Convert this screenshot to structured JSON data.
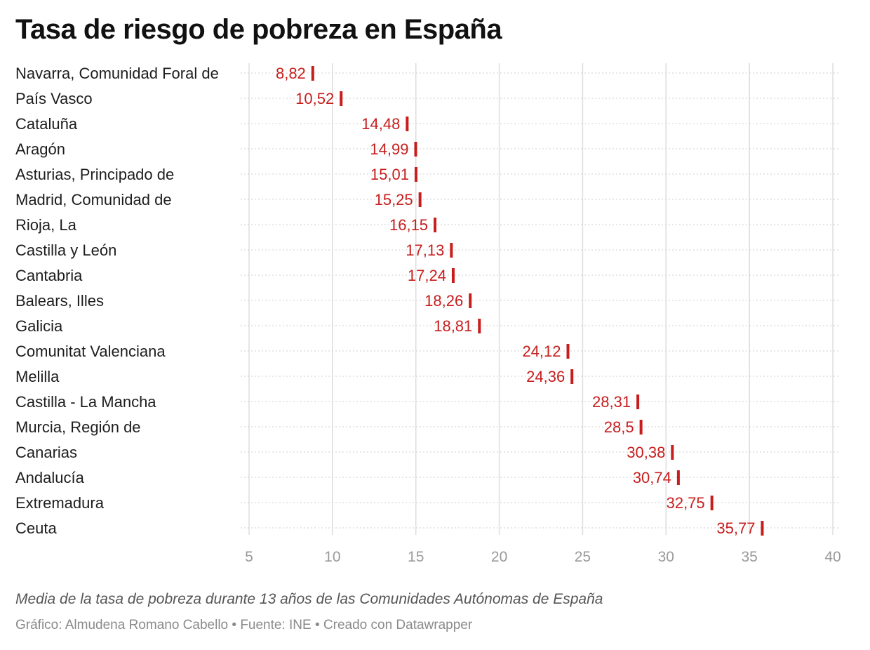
{
  "title": "Tasa de riesgo de pobreza en España",
  "notes": "Media de la tasa de pobreza durante 13 años de las Comunidades Autónomas de España",
  "footer": "Gráfico: Almudena Romano Cabello • Fuente: INE • Creado con Datawrapper",
  "colors": {
    "marker": "#c71e1d",
    "value_text": "#c71e1d",
    "grid_vertical": "#dddddd",
    "grid_row": "#cfcfcf",
    "tick_text": "#9a9a9a"
  },
  "chart_data": {
    "type": "scatter",
    "marker": "vertical-bar",
    "categories": [
      "Navarra, Comunidad Foral de",
      "País Vasco",
      "Cataluña",
      "Aragón",
      "Asturias, Principado de",
      "Madrid, Comunidad de",
      "Rioja, La",
      "Castilla y León",
      "Cantabria",
      "Balears, Illes",
      "Galicia",
      "Comunitat Valenciana",
      "Melilla",
      "Castilla - La Mancha",
      "Murcia, Región de",
      "Canarias",
      "Andalucía",
      "Extremadura",
      "Ceuta"
    ],
    "values": [
      8.82,
      10.52,
      14.48,
      14.99,
      15.01,
      15.25,
      16.15,
      17.13,
      17.24,
      18.26,
      18.81,
      24.12,
      24.36,
      28.31,
      28.5,
      30.38,
      30.74,
      32.75,
      35.77
    ],
    "value_labels": [
      "8,82",
      "10,52",
      "14,48",
      "14,99",
      "15,01",
      "15,25",
      "16,15",
      "17,13",
      "17,24",
      "18,26",
      "18,81",
      "24,12",
      "24,36",
      "28,31",
      "28,5",
      "30,38",
      "30,74",
      "32,75",
      "35,77"
    ],
    "xlim": [
      5,
      40
    ],
    "xticks": [
      5,
      10,
      15,
      20,
      25,
      30,
      35,
      40
    ],
    "xtick_labels": [
      "5",
      "10",
      "15",
      "20",
      "25",
      "30",
      "35",
      "40"
    ],
    "grid": true,
    "legend": "none"
  }
}
